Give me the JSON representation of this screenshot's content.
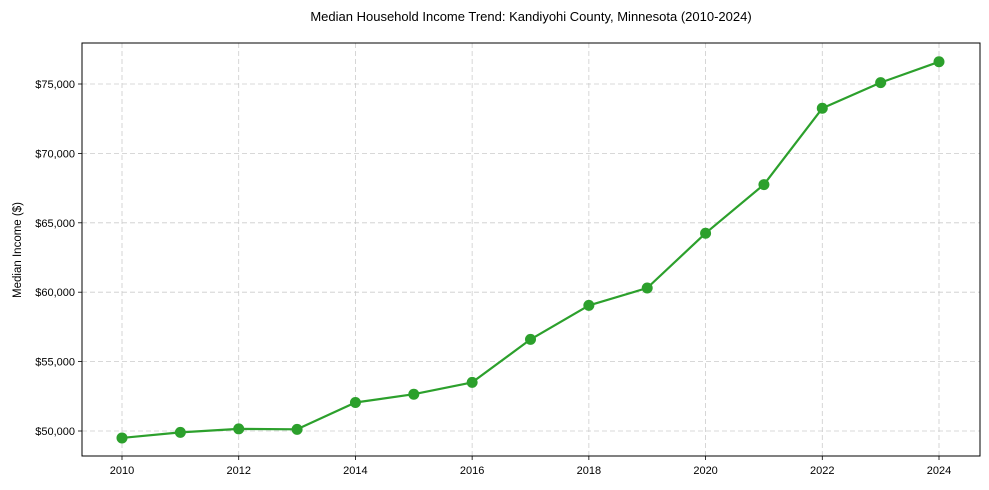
{
  "chart_data": {
    "type": "line",
    "title": "Median Household Income Trend: Kandiyohi County, Minnesota (2010-2024)",
    "xlabel": "",
    "ylabel": "Median Income ($)",
    "x": [
      2010,
      2011,
      2012,
      2013,
      2014,
      2015,
      2016,
      2017,
      2018,
      2019,
      2020,
      2021,
      2022,
      2023,
      2024
    ],
    "series": [
      {
        "name": "Median Household Income",
        "color": "#2ca02c",
        "marker": "circle",
        "values": [
          49500,
          49900,
          50150,
          50120,
          52050,
          52650,
          53500,
          56600,
          59050,
          60300,
          64250,
          67750,
          73250,
          75100,
          76600
        ]
      }
    ],
    "xticks": [
      "2010",
      "2012",
      "2014",
      "2016",
      "2018",
      "2020",
      "2022",
      "2024"
    ],
    "yticks": [
      "$50,000",
      "$55,000",
      "$60,000",
      "$65,000",
      "$70,000",
      "$75,000"
    ],
    "ytick_values": [
      50000,
      55000,
      60000,
      65000,
      70000,
      75000
    ],
    "xlim": [
      2009.33,
      2024.67
    ],
    "ylim": [
      48150,
      77950
    ],
    "grid": true,
    "grid_style": "dashed",
    "legend": null
  }
}
